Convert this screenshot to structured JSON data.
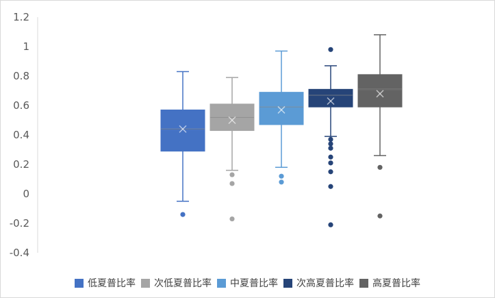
{
  "chart_data": {
    "type": "box",
    "ylim": [
      -0.4,
      1.2
    ],
    "yticks": [
      "1.2",
      "1",
      "0.8",
      "0.6",
      "0.4",
      "0.2",
      "0",
      "-0.2",
      "-0.4"
    ],
    "grid": false,
    "legend_position": "bottom",
    "series": [
      {
        "name": "低夏普比率",
        "color": "#4472c4",
        "q1": 0.29,
        "median": 0.44,
        "q3": 0.57,
        "mean": 0.44,
        "whisker_low": -0.05,
        "whisker_high": 0.83,
        "outliers": [
          -0.14
        ]
      },
      {
        "name": "次低夏普比率",
        "color": "#a5a5a5",
        "q1": 0.43,
        "median": 0.52,
        "q3": 0.61,
        "mean": 0.5,
        "whisker_low": 0.16,
        "whisker_high": 0.79,
        "outliers": [
          0.13,
          0.07,
          -0.17
        ]
      },
      {
        "name": "中夏普比率",
        "color": "#5b9bd5",
        "q1": 0.47,
        "median": 0.59,
        "q3": 0.69,
        "mean": 0.57,
        "whisker_low": 0.18,
        "whisker_high": 0.97,
        "outliers": [
          0.12,
          0.08
        ]
      },
      {
        "name": "次高夏普比率",
        "color": "#264478",
        "q1": 0.59,
        "median": 0.67,
        "q3": 0.71,
        "mean": 0.63,
        "whisker_low": 0.39,
        "whisker_high": 0.87,
        "outliers": [
          0.98,
          0.37,
          0.34,
          0.31,
          0.25,
          0.21,
          0.15,
          0.05,
          -0.21
        ]
      },
      {
        "name": "高夏普比率",
        "color": "#636363",
        "q1": 0.59,
        "median": 0.71,
        "q3": 0.81,
        "mean": 0.68,
        "whisker_low": 0.26,
        "whisker_high": 1.08,
        "outliers": [
          0.18,
          -0.15
        ]
      }
    ]
  }
}
